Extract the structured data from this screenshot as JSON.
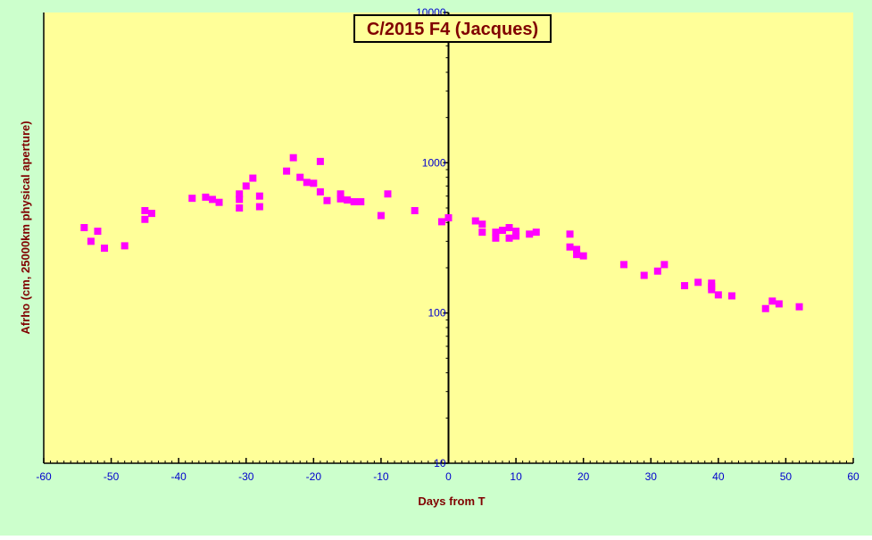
{
  "colors": {
    "outer_bg": "#ccffcc",
    "plot_bg": "#ffff99",
    "axis": "#000000",
    "tick_label": "#0000cc",
    "axis_title": "#800000",
    "title_text": "#800000",
    "title_box_bg": "#ffff99",
    "marker": "#ff00ff"
  },
  "chart_data": {
    "type": "scatter",
    "title": "C/2015 F4 (Jacques)",
    "xlabel": "Days from T",
    "ylabel": "Afrho (cm, 25000km physical aperture)",
    "xlim": [
      -60,
      60
    ],
    "ylim": [
      10,
      10000
    ],
    "yscale": "log",
    "xticks": [
      -60,
      -50,
      -40,
      -30,
      -20,
      -10,
      0,
      10,
      20,
      30,
      40,
      50,
      60
    ],
    "yticks": [
      10,
      100,
      1000,
      10000
    ],
    "grid": false,
    "marker": "square",
    "series": [
      {
        "points": [
          [
            -54,
            370
          ],
          [
            -53,
            300
          ],
          [
            -52,
            350
          ],
          [
            -51,
            270
          ],
          [
            -48,
            280
          ],
          [
            -45,
            420
          ],
          [
            -45,
            480
          ],
          [
            -44,
            460
          ],
          [
            -38,
            580
          ],
          [
            -36,
            590
          ],
          [
            -35,
            570
          ],
          [
            -34,
            545
          ],
          [
            -31,
            620
          ],
          [
            -31,
            570
          ],
          [
            -31,
            500
          ],
          [
            -30,
            700
          ],
          [
            -29,
            790
          ],
          [
            -28,
            600
          ],
          [
            -28,
            510
          ],
          [
            -24,
            880
          ],
          [
            -23,
            1080
          ],
          [
            -22,
            800
          ],
          [
            -21,
            740
          ],
          [
            -20,
            730
          ],
          [
            -19,
            1020
          ],
          [
            -19,
            640
          ],
          [
            -18,
            560
          ],
          [
            -16,
            620
          ],
          [
            -16,
            575
          ],
          [
            -15,
            565
          ],
          [
            -14,
            550
          ],
          [
            -13,
            550
          ],
          [
            -10,
            445
          ],
          [
            -9,
            620
          ],
          [
            -5,
            480
          ],
          [
            -1,
            405
          ],
          [
            0,
            430
          ],
          [
            4,
            410
          ],
          [
            5,
            390
          ],
          [
            5,
            345
          ],
          [
            7,
            345
          ],
          [
            7,
            315
          ],
          [
            8,
            355
          ],
          [
            9,
            370
          ],
          [
            9,
            315
          ],
          [
            10,
            325
          ],
          [
            10,
            350
          ],
          [
            12,
            335
          ],
          [
            13,
            345
          ],
          [
            18,
            335
          ],
          [
            18,
            275
          ],
          [
            19,
            265
          ],
          [
            19,
            245
          ],
          [
            20,
            240
          ],
          [
            26,
            210
          ],
          [
            29,
            178
          ],
          [
            31,
            190
          ],
          [
            32,
            210
          ],
          [
            35,
            152
          ],
          [
            37,
            160
          ],
          [
            39,
            158
          ],
          [
            39,
            150
          ],
          [
            39,
            143
          ],
          [
            40,
            132
          ],
          [
            42,
            130
          ],
          [
            47,
            107
          ],
          [
            48,
            120
          ],
          [
            49,
            115
          ],
          [
            52,
            110
          ]
        ]
      }
    ]
  }
}
